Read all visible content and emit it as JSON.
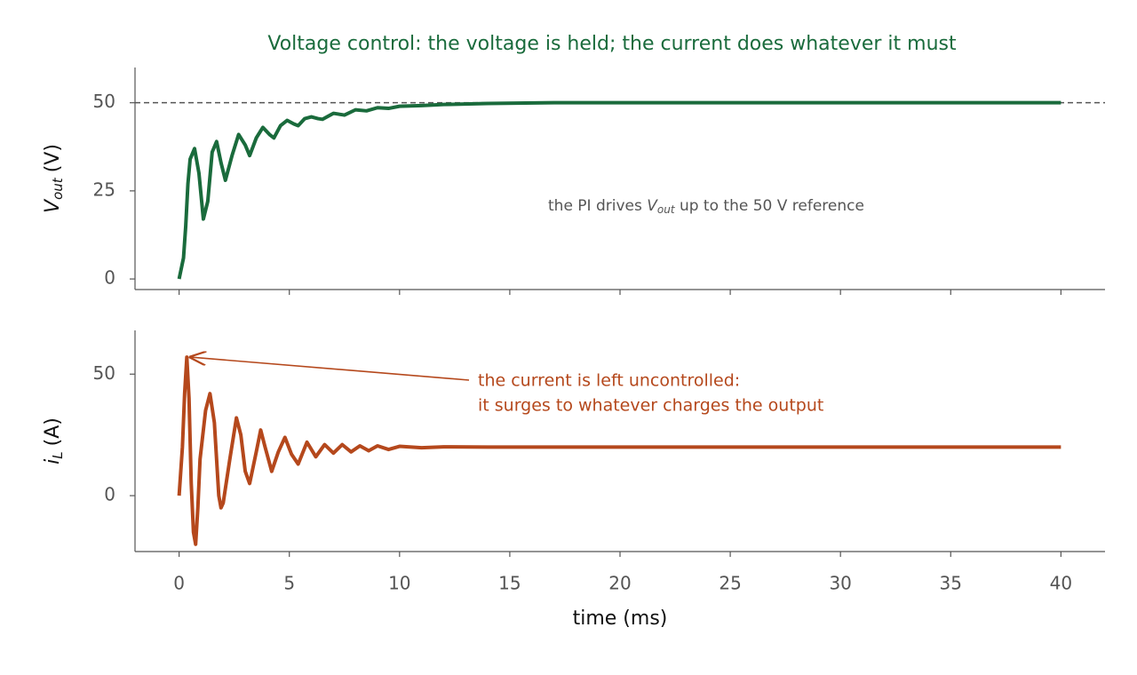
{
  "chart_data": [
    {
      "type": "line",
      "title": "Voltage control: the voltage is held; the current does whatever it must",
      "ylabel": {
        "symbol": "V",
        "subscript": "out",
        "unit": "(V)"
      },
      "annotation": [
        "the PI drives ",
        "V",
        "out",
        " up to the 50 V reference"
      ],
      "reference_line": 50,
      "xlim": [
        -2,
        42
      ],
      "xticks": [
        0,
        5,
        10,
        15,
        20,
        25,
        30,
        35,
        40
      ],
      "ylim": [
        -3,
        60
      ],
      "yticks": [
        0,
        25,
        50
      ],
      "x": [
        0,
        0.2,
        0.3,
        0.4,
        0.5,
        0.7,
        0.9,
        1.1,
        1.3,
        1.5,
        1.7,
        1.9,
        2.1,
        2.4,
        2.7,
        3.0,
        3.2,
        3.5,
        3.8,
        4.1,
        4.3,
        4.6,
        4.9,
        5.2,
        5.4,
        5.7,
        6.0,
        6.3,
        6.5,
        7.0,
        7.5,
        8.0,
        8.5,
        9.0,
        9.5,
        10,
        11,
        12,
        14,
        17,
        20,
        30,
        40
      ],
      "series": [
        {
          "color": "#1a6b3c",
          "values": [
            0,
            6,
            15,
            27,
            34,
            37,
            30,
            17,
            22,
            36,
            39,
            33,
            28,
            35,
            41,
            38,
            35,
            40,
            43,
            41,
            40,
            43.5,
            45,
            44,
            43.5,
            45.5,
            46,
            45.5,
            45.3,
            47,
            46.5,
            48,
            47.7,
            48.6,
            48.4,
            49,
            49.2,
            49.5,
            49.8,
            50,
            50,
            50,
            50
          ]
        }
      ]
    },
    {
      "type": "line",
      "xlabel": "time (ms)",
      "ylabel": {
        "symbol": "i",
        "subscript": "L",
        "unit": "(A)"
      },
      "annotation": [
        "the current is left uncontrolled:",
        "it surges to whatever charges the output"
      ],
      "xlim": [
        -2,
        42
      ],
      "xticks": [
        0,
        5,
        10,
        15,
        20,
        25,
        30,
        35,
        40
      ],
      "ylim": [
        -23,
        68
      ],
      "yticks": [
        0,
        50
      ],
      "x": [
        0,
        0.15,
        0.25,
        0.35,
        0.45,
        0.55,
        0.65,
        0.75,
        0.85,
        0.95,
        1.2,
        1.4,
        1.6,
        1.8,
        1.9,
        2.0,
        2.3,
        2.6,
        2.8,
        3.0,
        3.2,
        3.5,
        3.7,
        3.9,
        4.2,
        4.5,
        4.8,
        5.1,
        5.4,
        5.8,
        6.2,
        6.6,
        7.0,
        7.4,
        7.8,
        8.2,
        8.6,
        9.0,
        9.5,
        10,
        11,
        12,
        14,
        40
      ],
      "series": [
        {
          "color": "#b5481c",
          "values": [
            0,
            20,
            42,
            57,
            40,
            5,
            -15,
            -20,
            -5,
            15,
            35,
            42,
            30,
            0,
            -5,
            -3,
            15,
            32,
            25,
            10,
            5,
            18,
            27,
            20,
            10,
            18,
            24,
            17,
            13,
            22,
            16,
            21,
            17.5,
            21,
            18,
            20.5,
            18.5,
            20.5,
            19,
            20.3,
            19.7,
            20.1,
            20,
            20
          ]
        }
      ]
    }
  ]
}
